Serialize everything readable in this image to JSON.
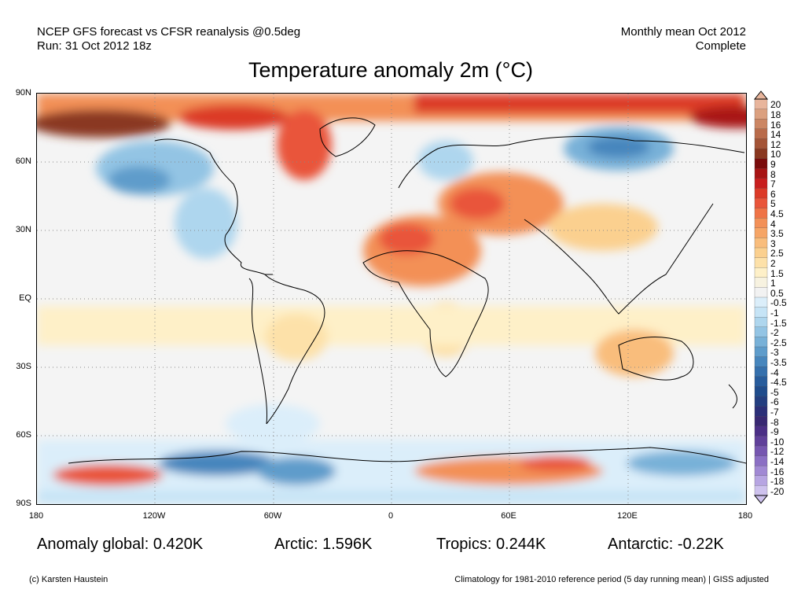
{
  "header": {
    "left_line1": "NCEP GFS forecast vs CFSR reanalysis @0.5deg",
    "left_line2": "Run: 31 Oct 2012 18z",
    "right_line1": "Monthly mean Oct 2012",
    "right_line2": "Complete"
  },
  "title": "Temperature anomaly 2m (°C)",
  "axes": {
    "lat_ticks": [
      "90N",
      "60N",
      "30N",
      "EQ",
      "30S",
      "60S",
      "90S"
    ],
    "lon_ticks": [
      "180",
      "120W",
      "60W",
      "0",
      "60E",
      "120E",
      "180"
    ]
  },
  "colorbar": {
    "labels": [
      "20",
      "18",
      "16",
      "14",
      "12",
      "10",
      "9",
      "8",
      "7",
      "6",
      "5",
      "4.5",
      "4",
      "3.5",
      "3",
      "2.5",
      "2",
      "1.5",
      "1",
      "0.5",
      "-0.5",
      "-1",
      "-1.5",
      "-2",
      "-2.5",
      "-3",
      "-3.5",
      "-4",
      "-4.5",
      "-5",
      "-6",
      "-7",
      "-8",
      "-9",
      "-10",
      "-12",
      "-14",
      "-16",
      "-18",
      "-20"
    ],
    "colors": [
      "#e8b59c",
      "#dba07f",
      "#cc8663",
      "#b96b4b",
      "#a45437",
      "#8a3820",
      "#7a0c0c",
      "#a81414",
      "#c81e1e",
      "#dc3a28",
      "#e9553a",
      "#ef7346",
      "#f39057",
      "#f6a566",
      "#f9bd7c",
      "#fbd08f",
      "#fde1a9",
      "#fef0c8",
      "#f7f2e0",
      "#f2f2f2",
      "#dbeefa",
      "#c6e4f6",
      "#aed6ee",
      "#93c4e4",
      "#78b1d8",
      "#5e9ccb",
      "#4786bd",
      "#3570ad",
      "#275c9c",
      "#1f4c8c",
      "#233e80",
      "#2b2f78",
      "#382872",
      "#4b2f86",
      "#60409a",
      "#7656b0",
      "#8b6fc4",
      "#a189d4",
      "#b7a5e2",
      "#cec2ee"
    ],
    "top_arrow_color": "#e8b59c",
    "bottom_arrow_color": "#cec2ee"
  },
  "stats": {
    "global": "Anomaly global: 0.420K",
    "arctic": "Arctic: 1.596K",
    "tropics": "Tropics: 0.244K",
    "antarctic": "Antarctic: -0.22K"
  },
  "footer": {
    "copyright": "(c) Karsten Haustein",
    "climatology": "Climatology for 1981-2010 reference period (5 day running mean) | GISS adjusted"
  }
}
